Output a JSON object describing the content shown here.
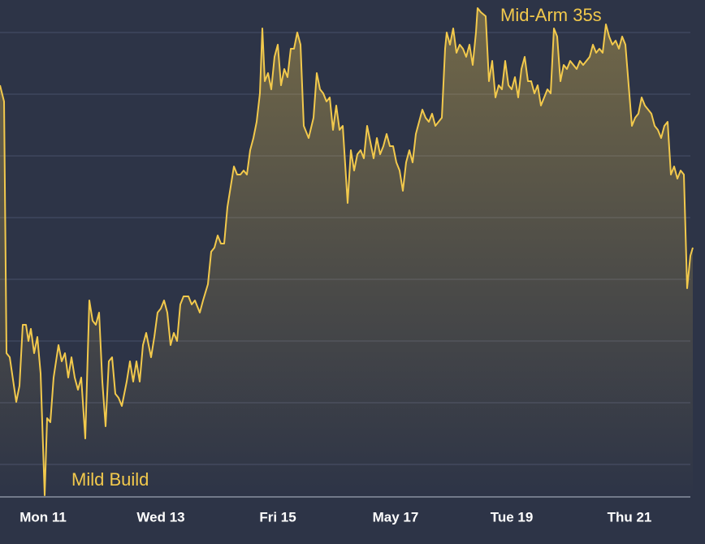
{
  "chart_data": {
    "type": "area",
    "annotations": [
      "Mid-Arm 35s",
      "Mild Build"
    ],
    "color": "#f2c94c",
    "xlim": [
      0,
      868
    ],
    "xticks": [
      {
        "value": 53,
        "label": "Mon 11"
      },
      {
        "value": 198,
        "label": "Wed 13"
      },
      {
        "value": 342,
        "label": "Fri 15"
      },
      {
        "value": 487,
        "label": "May 17"
      },
      {
        "value": 630,
        "label": "Tue 19"
      },
      {
        "value": 775,
        "label": "Thu 21"
      }
    ],
    "ylim": [
      0,
      612
    ],
    "yticks": [
      40,
      116,
      192,
      268,
      344,
      420,
      496,
      572
    ],
    "grid": true,
    "x": [
      0,
      5,
      8,
      12,
      20,
      24,
      28,
      32,
      35,
      38,
      42,
      46,
      50,
      55,
      58,
      62,
      66,
      72,
      76,
      80,
      84,
      88,
      92,
      96,
      100,
      105,
      110,
      114,
      118,
      122,
      126,
      130,
      134,
      138,
      142,
      146,
      150,
      156,
      160,
      164,
      168,
      172,
      176,
      180,
      186,
      190,
      194,
      198,
      202,
      206,
      210,
      214,
      218,
      222,
      226,
      232,
      236,
      240,
      246,
      250,
      256,
      260,
      264,
      268,
      272,
      276,
      280,
      284,
      288,
      292,
      296,
      300,
      304,
      308,
      312,
      316,
      320,
      323,
      326,
      330,
      334,
      338,
      342,
      346,
      350,
      354,
      358,
      362,
      366,
      370,
      374,
      380,
      386,
      390,
      394,
      398,
      402,
      406,
      410,
      414,
      418,
      422,
      428,
      432,
      436,
      440,
      444,
      448,
      452,
      456,
      460,
      464,
      468,
      472,
      476,
      480,
      484,
      488,
      492,
      496,
      500,
      504,
      508,
      512,
      516,
      520,
      524,
      528,
      532,
      536,
      540,
      544,
      548,
      550,
      554,
      558,
      562,
      566,
      570,
      574,
      578,
      582,
      586,
      588,
      592,
      598,
      602,
      606,
      610,
      614,
      618,
      622,
      626,
      630,
      634,
      638,
      642,
      646,
      650,
      654,
      658,
      662,
      666,
      670,
      674,
      678,
      682,
      686,
      690,
      694,
      698,
      702,
      706,
      710,
      714,
      718,
      722,
      726,
      730,
      734,
      738,
      742,
      746,
      750,
      754,
      758,
      762,
      766,
      770,
      774,
      778,
      782,
      786,
      790,
      794,
      798,
      802,
      806,
      810,
      814,
      818,
      822,
      826,
      830,
      834,
      838,
      842,
      846,
      850,
      853
    ],
    "values": [
      507,
      487,
      177,
      172,
      117,
      137,
      212,
      212,
      192,
      207,
      177,
      197,
      152,
      2,
      97,
      92,
      147,
      187,
      167,
      177,
      147,
      172,
      147,
      132,
      147,
      72,
      242,
      217,
      212,
      227,
      142,
      87,
      167,
      172,
      127,
      122,
      112,
      142,
      167,
      142,
      167,
      142,
      187,
      202,
      172,
      197,
      227,
      232,
      242,
      227,
      187,
      202,
      192,
      237,
      247,
      247,
      237,
      242,
      227,
      242,
      262,
      302,
      307,
      322,
      312,
      312,
      357,
      382,
      407,
      397,
      397,
      402,
      397,
      427,
      442,
      462,
      497,
      577,
      512,
      522,
      502,
      542,
      557,
      507,
      527,
      517,
      552,
      552,
      572,
      557,
      457,
      442,
      467,
      522,
      502,
      497,
      487,
      492,
      452,
      482,
      452,
      457,
      362,
      427,
      402,
      422,
      427,
      417,
      457,
      437,
      417,
      442,
      422,
      432,
      447,
      432,
      432,
      412,
      402,
      377,
      412,
      427,
      412,
      447,
      462,
      477,
      467,
      462,
      472,
      457,
      462,
      467,
      552,
      572,
      557,
      577,
      547,
      557,
      552,
      542,
      557,
      532,
      572,
      602,
      597,
      592,
      512,
      537,
      492,
      507,
      502,
      537,
      507,
      502,
      517,
      492,
      527,
      542,
      512,
      512,
      497,
      507,
      482,
      492,
      502,
      497,
      577,
      567,
      512,
      532,
      527,
      537,
      532,
      527,
      537,
      532,
      537,
      542,
      557,
      547,
      552,
      547,
      582,
      567,
      557,
      562,
      552,
      567,
      557,
      507,
      457,
      467,
      472,
      492,
      482,
      477,
      472,
      457,
      452,
      442,
      457,
      462,
      397,
      407,
      392,
      402,
      397,
      257,
      297,
      307
    ]
  }
}
